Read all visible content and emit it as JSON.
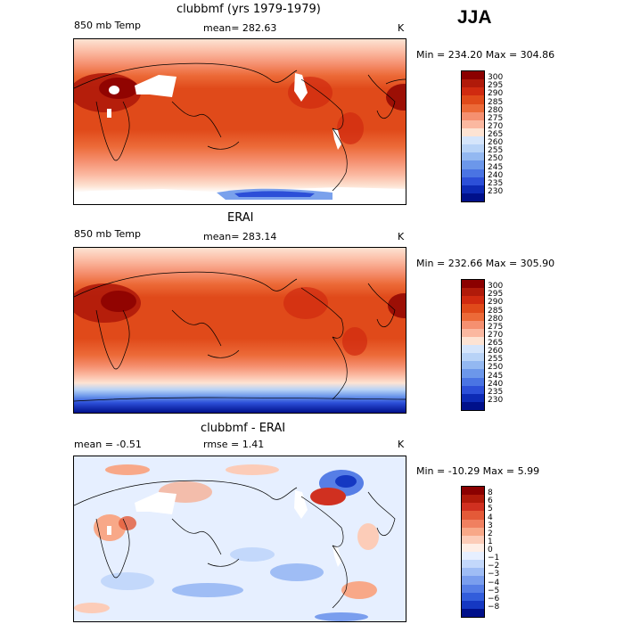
{
  "season": "JJA",
  "panels": [
    {
      "title": "clubbmf (yrs 1979-1979)",
      "left_label": "850 mb Temp",
      "mid_label": "mean= 282.63",
      "unit": "K",
      "minmax": "Min = 234.20 Max = 304.86",
      "levels": [
        "300",
        "295",
        "290",
        "285",
        "280",
        "275",
        "270",
        "265",
        "260",
        "255",
        "250",
        "245",
        "240",
        "235",
        "230"
      ],
      "colors": [
        "#8b0000",
        "#b01a0a",
        "#d02a10",
        "#e04a1a",
        "#ec6a38",
        "#f59070",
        "#fbb8a0",
        "#fde3d3",
        "#d5e5fb",
        "#b8d3f7",
        "#93b8f1",
        "#6c97ea",
        "#4a74e3",
        "#2c4fd8",
        "#0d2ab5",
        "#00108a"
      ]
    },
    {
      "title": "ERAI",
      "left_label": "850 mb Temp",
      "mid_label": "mean= 283.14",
      "unit": "K",
      "minmax": "Min = 232.66 Max = 305.90",
      "levels": [
        "300",
        "295",
        "290",
        "285",
        "280",
        "275",
        "270",
        "265",
        "260",
        "255",
        "250",
        "245",
        "240",
        "235",
        "230"
      ],
      "colors": [
        "#8b0000",
        "#b01a0a",
        "#d02a10",
        "#e04a1a",
        "#ec6a38",
        "#f59070",
        "#fbb8a0",
        "#fde3d3",
        "#d5e5fb",
        "#b8d3f7",
        "#93b8f1",
        "#6c97ea",
        "#4a74e3",
        "#2c4fd8",
        "#0d2ab5",
        "#00108a"
      ]
    },
    {
      "title": "clubbmf - ERAI",
      "left_label": "mean =  -0.51",
      "mid_label": "rmse =   1.41",
      "unit": "K",
      "minmax": "Min = -10.29 Max =   5.99",
      "levels": [
        "8",
        "6",
        "5",
        "4",
        "3",
        "2",
        "1",
        "0",
        "−1",
        "−2",
        "−3",
        "−4",
        "−5",
        "−6",
        "−8"
      ],
      "colors": [
        "#8b0000",
        "#b01a0a",
        "#d03020",
        "#e45a38",
        "#f08060",
        "#f8a888",
        "#fcccb8",
        "#feeee6",
        "#e6efff",
        "#c3d8fb",
        "#9fbdf5",
        "#7a9eee",
        "#567ee6",
        "#325ddb",
        "#1538c2",
        "#00108a"
      ]
    }
  ]
}
